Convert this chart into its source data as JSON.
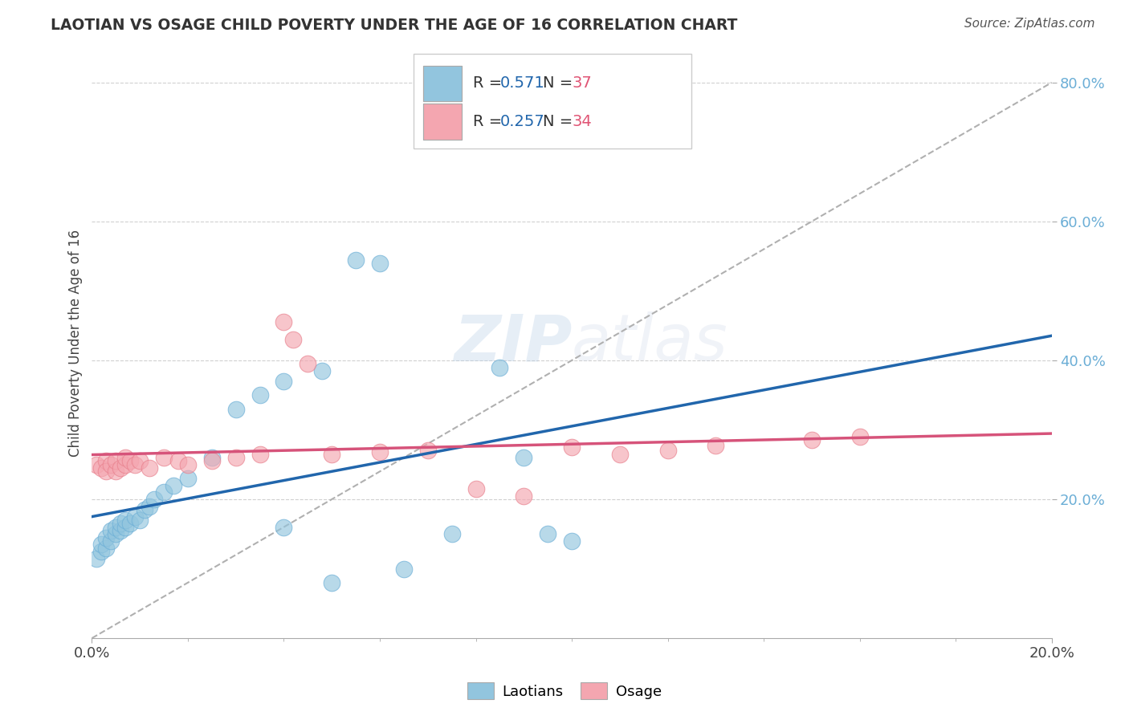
{
  "title": "LAOTIAN VS OSAGE CHILD POVERTY UNDER THE AGE OF 16 CORRELATION CHART",
  "source": "Source: ZipAtlas.com",
  "ylabel": "Child Poverty Under the Age of 16",
  "xlim": [
    0.0,
    0.2
  ],
  "ylim": [
    0.0,
    0.85
  ],
  "laotian_color": "#92c5de",
  "laotian_edge_color": "#6baed6",
  "osage_color": "#f4a6b0",
  "osage_edge_color": "#e87f8c",
  "laotian_line_color": "#2166ac",
  "osage_line_color": "#d6537a",
  "diagonal_color": "#b0b0b0",
  "r_laotian": 0.571,
  "n_laotian": 37,
  "r_osage": 0.257,
  "n_osage": 34,
  "r_color": "#2166ac",
  "n_color": "#e05575",
  "background_color": "#ffffff",
  "watermark_zip": "ZIP",
  "watermark_atlas": "atlas",
  "laotian_x": [
    0.001,
    0.002,
    0.002,
    0.003,
    0.003,
    0.004,
    0.004,
    0.005,
    0.005,
    0.006,
    0.006,
    0.007,
    0.007,
    0.008,
    0.009,
    0.01,
    0.011,
    0.012,
    0.013,
    0.015,
    0.017,
    0.02,
    0.025,
    0.03,
    0.035,
    0.04,
    0.048,
    0.055,
    0.06,
    0.065,
    0.075,
    0.085,
    0.09,
    0.095,
    0.1,
    0.04,
    0.05
  ],
  "laotian_y": [
    0.115,
    0.125,
    0.135,
    0.13,
    0.145,
    0.14,
    0.155,
    0.15,
    0.16,
    0.155,
    0.165,
    0.16,
    0.17,
    0.165,
    0.175,
    0.17,
    0.185,
    0.19,
    0.2,
    0.21,
    0.22,
    0.23,
    0.26,
    0.33,
    0.35,
    0.37,
    0.385,
    0.545,
    0.54,
    0.1,
    0.15,
    0.39,
    0.26,
    0.15,
    0.14,
    0.16,
    0.08
  ],
  "osage_x": [
    0.001,
    0.002,
    0.003,
    0.003,
    0.004,
    0.005,
    0.005,
    0.006,
    0.007,
    0.007,
    0.008,
    0.009,
    0.01,
    0.012,
    0.015,
    0.018,
    0.02,
    0.025,
    0.03,
    0.035,
    0.04,
    0.042,
    0.05,
    0.06,
    0.07,
    0.08,
    0.09,
    0.1,
    0.11,
    0.12,
    0.13,
    0.15,
    0.16,
    0.045
  ],
  "osage_y": [
    0.25,
    0.245,
    0.255,
    0.24,
    0.25,
    0.24,
    0.255,
    0.245,
    0.25,
    0.26,
    0.255,
    0.25,
    0.255,
    0.245,
    0.26,
    0.255,
    0.25,
    0.255,
    0.26,
    0.265,
    0.455,
    0.43,
    0.265,
    0.268,
    0.27,
    0.215,
    0.205,
    0.275,
    0.265,
    0.27,
    0.278,
    0.285,
    0.29,
    0.395
  ]
}
